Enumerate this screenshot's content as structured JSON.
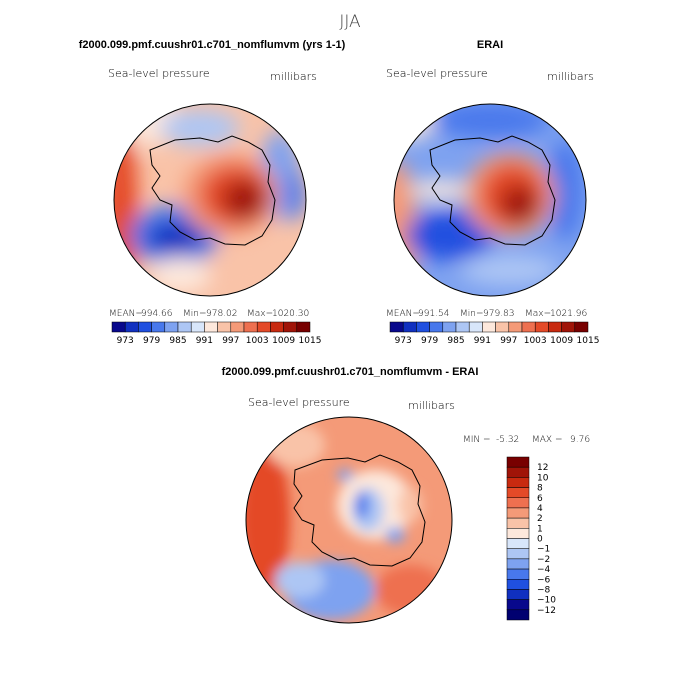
{
  "chart_data": {
    "type": "contour-map",
    "title": "JJA",
    "variable": "Sea-level pressure",
    "units": "millibars",
    "panels": [
      {
        "id": "model",
        "title": "f2000.099.pmf.cuushr01.c701_nomflumvm (yrs 1-1)",
        "stats": {
          "mean_label": "MEAN=",
          "mean": "994.66",
          "min_label": "Min=",
          "min": "978.02",
          "max_label": "Max=",
          "max": "1020.30"
        },
        "colorbar_ticks": [
          "973",
          "979",
          "985",
          "991",
          "997",
          "1003",
          "1009",
          "1015"
        ]
      },
      {
        "id": "obs",
        "title": "ERAI",
        "stats": {
          "mean_label": "MEAN=",
          "mean": "991.54",
          "min_label": "Min=",
          "min": "979.83",
          "max_label": "Max=",
          "max": "1021.96"
        },
        "colorbar_ticks": [
          "973",
          "979",
          "985",
          "991",
          "997",
          "1003",
          "1009",
          "1015"
        ]
      },
      {
        "id": "diff",
        "title": "f2000.099.pmf.cuushr01.c701_nomflumvm - ERAI",
        "stats": {
          "min_label": "MIN =",
          "min": "-5.32",
          "max_label": "MAX =",
          "max": "9.76"
        },
        "colorbar_ticks": [
          "12",
          "10",
          "8",
          "6",
          "4",
          "2",
          "1",
          "0",
          "−1",
          "−2",
          "−4",
          "−6",
          "−8",
          "−10",
          "−12"
        ]
      }
    ],
    "colors": {
      "abs_scale": [
        "#08088c",
        "#1030c0",
        "#2050e0",
        "#4878ec",
        "#7ea2f0",
        "#adc6f4",
        "#d8e6fa",
        "#fde8dc",
        "#f9c3a8",
        "#f49a78",
        "#ee7050",
        "#e44a28",
        "#c82a10",
        "#a01408",
        "#780000"
      ],
      "diff_scale": [
        "#780000",
        "#a01408",
        "#c82a10",
        "#e44a28",
        "#ee7050",
        "#f49a78",
        "#f9c3a8",
        "#fde8dc",
        "#d8e6fa",
        "#adc6f4",
        "#7ea2f0",
        "#4878ec",
        "#2050e0",
        "#1030c0",
        "#08088c",
        "#000070"
      ]
    }
  }
}
